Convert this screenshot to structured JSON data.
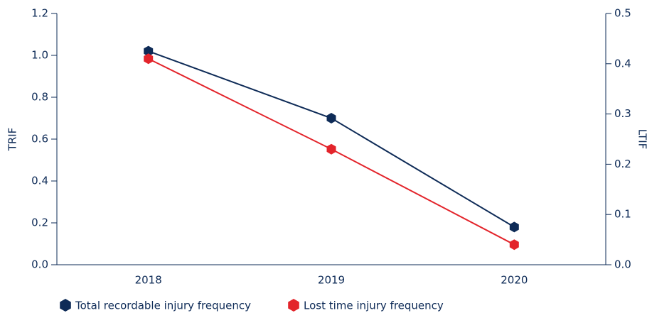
{
  "chart_data": {
    "type": "line",
    "categories": [
      "2018",
      "2019",
      "2020"
    ],
    "series": [
      {
        "name": "Total recordable injury frequency",
        "color": "#0e2b57",
        "values": [
          1.02,
          0.7,
          0.18
        ]
      },
      {
        "name": "Lost time injury frequency",
        "color": "#e3242b",
        "values": [
          0.41,
          0.23,
          0.04
        ],
        "axis": "y2"
      }
    ],
    "ylabel": "TRIF",
    "y2label": "LTIF",
    "ylim": [
      0,
      1.2
    ],
    "yticks": [
      {
        "value": 0,
        "label": "0.0"
      },
      0.2,
      0.4,
      0.6,
      0.8,
      {
        "value": 1,
        "label": "1.0"
      },
      1.2
    ],
    "y2lim": [
      0,
      0.5
    ],
    "y2ticks": [
      {
        "value": 0,
        "label": "0.0"
      },
      0.1,
      0.2,
      0.3,
      0.4,
      0.5
    ],
    "legend": "bottom-left"
  }
}
